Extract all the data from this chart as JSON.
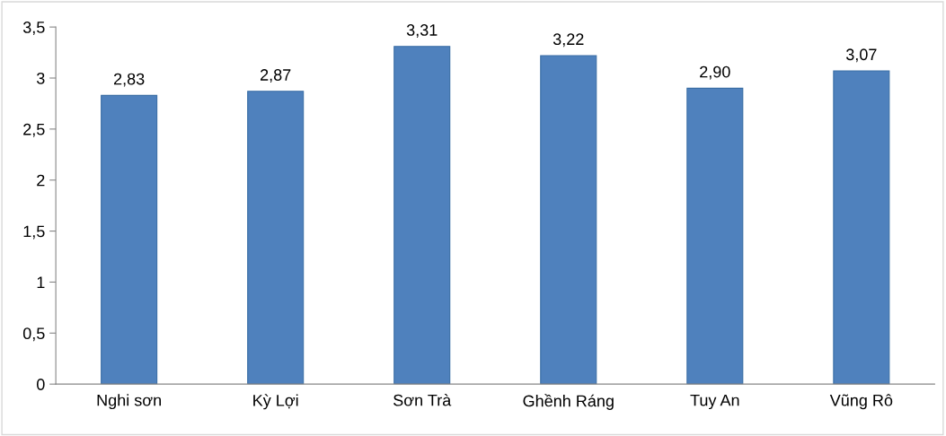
{
  "chart_data": {
    "type": "bar",
    "categories": [
      "Nghi sơn",
      "Kỳ Lợi",
      "Sơn Trà",
      "Ghềnh Ráng",
      "Tuy An",
      "Vũng Rô"
    ],
    "values": [
      2.83,
      2.87,
      3.31,
      3.22,
      2.9,
      3.07
    ],
    "value_labels": [
      "2,83",
      "2,87",
      "3,31",
      "3,22",
      "2,90",
      "3,07"
    ],
    "color": "#4f81bd",
    "ylim": [
      0,
      3.5
    ],
    "yticks": [
      {
        "value": 0,
        "label": "0"
      },
      {
        "value": 0.5,
        "label": "0,5"
      },
      {
        "value": 1,
        "label": "1"
      },
      {
        "value": 1.5,
        "label": "1,5"
      },
      {
        "value": 2,
        "label": "2"
      },
      {
        "value": 2.5,
        "label": "2,5"
      },
      {
        "value": 3,
        "label": "3"
      },
      {
        "value": 3.5,
        "label": "3,5"
      }
    ],
    "grid": false,
    "legend": false
  }
}
